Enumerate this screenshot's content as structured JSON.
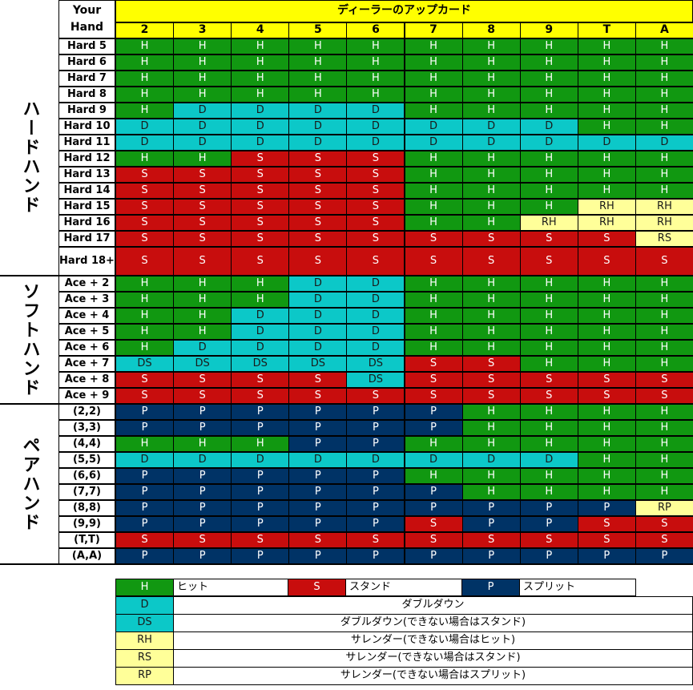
{
  "header": {
    "your_hand_line1": "Your",
    "your_hand_line2": "Hand",
    "dealer_title": "ディーラーのアップカード",
    "dealer_cards": [
      "2",
      "3",
      "4",
      "5",
      "6",
      "7",
      "8",
      "9",
      "T",
      "A"
    ]
  },
  "sections": [
    {
      "label": "ハードハンド",
      "rows": [
        {
          "hand": "Hard 5",
          "actions": [
            "H",
            "H",
            "H",
            "H",
            "H",
            "H",
            "H",
            "H",
            "H",
            "H"
          ]
        },
        {
          "hand": "Hard 6",
          "actions": [
            "H",
            "H",
            "H",
            "H",
            "H",
            "H",
            "H",
            "H",
            "H",
            "H"
          ]
        },
        {
          "hand": "Hard 7",
          "actions": [
            "H",
            "H",
            "H",
            "H",
            "H",
            "H",
            "H",
            "H",
            "H",
            "H"
          ]
        },
        {
          "hand": "Hard 8",
          "actions": [
            "H",
            "H",
            "H",
            "H",
            "H",
            "H",
            "H",
            "H",
            "H",
            "H"
          ]
        },
        {
          "hand": "Hard 9",
          "actions": [
            "H",
            "D",
            "D",
            "D",
            "D",
            "H",
            "H",
            "H",
            "H",
            "H"
          ]
        },
        {
          "hand": "Hard 10",
          "actions": [
            "D",
            "D",
            "D",
            "D",
            "D",
            "D",
            "D",
            "D",
            "H",
            "H"
          ]
        },
        {
          "hand": "Hard 11",
          "actions": [
            "D",
            "D",
            "D",
            "D",
            "D",
            "D",
            "D",
            "D",
            "D",
            "D"
          ]
        },
        {
          "hand": "Hard 12",
          "actions": [
            "H",
            "H",
            "S",
            "S",
            "S",
            "H",
            "H",
            "H",
            "H",
            "H"
          ]
        },
        {
          "hand": "Hard 13",
          "actions": [
            "S",
            "S",
            "S",
            "S",
            "S",
            "H",
            "H",
            "H",
            "H",
            "H"
          ]
        },
        {
          "hand": "Hard 14",
          "actions": [
            "S",
            "S",
            "S",
            "S",
            "S",
            "H",
            "H",
            "H",
            "H",
            "H"
          ]
        },
        {
          "hand": "Hard 15",
          "actions": [
            "S",
            "S",
            "S",
            "S",
            "S",
            "H",
            "H",
            "H",
            "RH",
            "RH"
          ]
        },
        {
          "hand": "Hard 16",
          "actions": [
            "S",
            "S",
            "S",
            "S",
            "S",
            "H",
            "H",
            "RH",
            "RH",
            "RH"
          ]
        },
        {
          "hand": "Hard 17",
          "actions": [
            "S",
            "S",
            "S",
            "S",
            "S",
            "S",
            "S",
            "S",
            "S",
            "RS"
          ]
        },
        {
          "hand": "Hard 18+",
          "actions": [
            "S",
            "S",
            "S",
            "S",
            "S",
            "S",
            "S",
            "S",
            "S",
            "S"
          ],
          "tall": true
        }
      ]
    },
    {
      "label": "ソフトハンド",
      "rows": [
        {
          "hand": "Ace + 2",
          "actions": [
            "H",
            "H",
            "H",
            "D",
            "D",
            "H",
            "H",
            "H",
            "H",
            "H"
          ]
        },
        {
          "hand": "Ace + 3",
          "actions": [
            "H",
            "H",
            "H",
            "D",
            "D",
            "H",
            "H",
            "H",
            "H",
            "H"
          ]
        },
        {
          "hand": "Ace + 4",
          "actions": [
            "H",
            "H",
            "D",
            "D",
            "D",
            "H",
            "H",
            "H",
            "H",
            "H"
          ]
        },
        {
          "hand": "Ace + 5",
          "actions": [
            "H",
            "H",
            "D",
            "D",
            "D",
            "H",
            "H",
            "H",
            "H",
            "H"
          ]
        },
        {
          "hand": "Ace + 6",
          "actions": [
            "H",
            "D",
            "D",
            "D",
            "D",
            "H",
            "H",
            "H",
            "H",
            "H"
          ]
        },
        {
          "hand": "Ace + 7",
          "actions": [
            "DS",
            "DS",
            "DS",
            "DS",
            "DS",
            "S",
            "S",
            "H",
            "H",
            "H"
          ]
        },
        {
          "hand": "Ace + 8",
          "actions": [
            "S",
            "S",
            "S",
            "S",
            "DS",
            "S",
            "S",
            "S",
            "S",
            "S"
          ]
        },
        {
          "hand": "Ace + 9",
          "actions": [
            "S",
            "S",
            "S",
            "S",
            "S",
            "S",
            "S",
            "S",
            "S",
            "S"
          ]
        }
      ]
    },
    {
      "label": "ペアハンド",
      "rows": [
        {
          "hand": "(2,2)",
          "actions": [
            "P",
            "P",
            "P",
            "P",
            "P",
            "P",
            "H",
            "H",
            "H",
            "H"
          ]
        },
        {
          "hand": "(3,3)",
          "actions": [
            "P",
            "P",
            "P",
            "P",
            "P",
            "P",
            "H",
            "H",
            "H",
            "H"
          ]
        },
        {
          "hand": "(4,4)",
          "actions": [
            "H",
            "H",
            "H",
            "P",
            "P",
            "H",
            "H",
            "H",
            "H",
            "H"
          ]
        },
        {
          "hand": "(5,5)",
          "actions": [
            "D",
            "D",
            "D",
            "D",
            "D",
            "D",
            "D",
            "D",
            "H",
            "H"
          ]
        },
        {
          "hand": "(6,6)",
          "actions": [
            "P",
            "P",
            "P",
            "P",
            "P",
            "H",
            "H",
            "H",
            "H",
            "H"
          ]
        },
        {
          "hand": "(7,7)",
          "actions": [
            "P",
            "P",
            "P",
            "P",
            "P",
            "P",
            "H",
            "H",
            "H",
            "H"
          ]
        },
        {
          "hand": "(8,8)",
          "actions": [
            "P",
            "P",
            "P",
            "P",
            "P",
            "P",
            "P",
            "P",
            "P",
            "RP"
          ]
        },
        {
          "hand": "(9,9)",
          "actions": [
            "P",
            "P",
            "P",
            "P",
            "P",
            "S",
            "P",
            "P",
            "S",
            "S"
          ]
        },
        {
          "hand": "(T,T)",
          "actions": [
            "S",
            "S",
            "S",
            "S",
            "S",
            "S",
            "S",
            "S",
            "S",
            "S"
          ]
        },
        {
          "hand": "(A,A)",
          "actions": [
            "P",
            "P",
            "P",
            "P",
            "P",
            "P",
            "P",
            "P",
            "P",
            "P"
          ]
        }
      ]
    }
  ],
  "legend": {
    "row1": [
      {
        "code": "H",
        "text": "ヒット"
      },
      {
        "code": "S",
        "text": "スタンド"
      },
      {
        "code": "P",
        "text": "スプリット"
      }
    ],
    "rows": [
      {
        "code": "D",
        "text": "ダブルダウン"
      },
      {
        "code": "DS",
        "text": "ダブルダウン(できない場合はスタンド)"
      },
      {
        "code": "RH",
        "text": "サレンダー(できない場合はヒット)"
      },
      {
        "code": "RS",
        "text": "サレンダー(できない場合はスタンド)"
      },
      {
        "code": "RP",
        "text": "サレンダー(できない場合はスプリット)"
      }
    ]
  }
}
